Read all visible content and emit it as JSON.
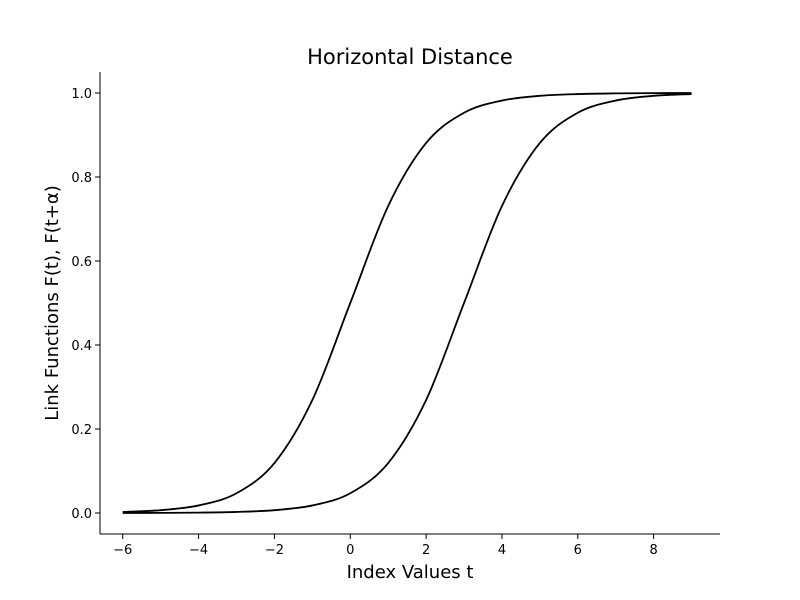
{
  "chart_data": {
    "type": "line",
    "title": "Horizontal Distance",
    "xlabel": "Index Values t",
    "ylabel": "Link Functions F(t), F(t+α)",
    "xlim": [
      -6.6,
      9.75
    ],
    "ylim": [
      -0.05,
      1.05
    ],
    "xticks": [
      -6,
      -4,
      -2,
      0,
      2,
      4,
      6,
      8
    ],
    "xtick_labels": [
      "−6",
      "−4",
      "−2",
      "0",
      "2",
      "4",
      "6",
      "8"
    ],
    "yticks": [
      0.0,
      0.2,
      0.4,
      0.6,
      0.8,
      1.0
    ],
    "ytick_labels": [
      "0.0",
      "0.2",
      "0.4",
      "0.6",
      "0.8",
      "1.0"
    ],
    "grid": false,
    "line_color": "#000000",
    "series": [
      {
        "x": [
          -6,
          -5,
          -4,
          -3,
          -2,
          -1,
          0,
          1,
          2,
          3,
          4,
          5,
          6,
          7,
          8,
          9
        ],
        "y": [
          0.0025,
          0.0067,
          0.018,
          0.047,
          0.119,
          0.269,
          0.5,
          0.731,
          0.881,
          0.953,
          0.982,
          0.9933,
          0.9975,
          0.9991,
          0.9997,
          0.9999
        ]
      },
      {
        "x": [
          -6,
          -5,
          -4,
          -3,
          -2,
          -1,
          0,
          1,
          2,
          3,
          4,
          5,
          6,
          7,
          8,
          9
        ],
        "y": [
          0.0001,
          0.0003,
          0.0009,
          0.0025,
          0.0067,
          0.018,
          0.047,
          0.119,
          0.269,
          0.5,
          0.731,
          0.881,
          0.953,
          0.982,
          0.9933,
          0.9975
        ]
      }
    ]
  }
}
